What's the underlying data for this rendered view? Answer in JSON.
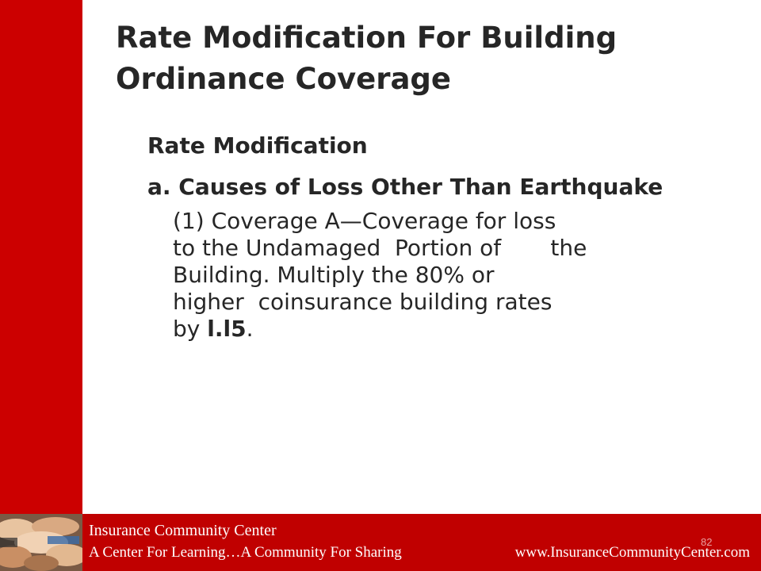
{
  "slide": {
    "title": "Rate Modification For Building Ordinance Coverage",
    "heading": "Rate Modification",
    "subheading": "a.  Causes of Loss Other Than Earthquake",
    "item_lines": [
      "(1) Coverage A—Coverage for loss",
      "to the Undamaged  Portion of       the",
      "Building. Multiply the 80% or",
      "higher  coinsurance building rates",
      "by "
    ],
    "item_bold_factor": "l.l5",
    "item_end": ".",
    "slide_number": "82"
  },
  "footer": {
    "org_name": "Insurance Community Center",
    "tagline": "A Center For Learning…A Community For Sharing",
    "url": "www.InsuranceCommunityCenter.com"
  },
  "colors": {
    "accent_red": "#cc0000",
    "footer_red": "#c00000",
    "text": "#262626"
  },
  "icons": {
    "footer_photo": "stacked-hands-photo"
  }
}
